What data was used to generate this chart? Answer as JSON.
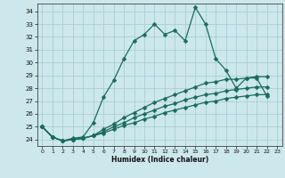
{
  "xlabel": "Humidex (Indice chaleur)",
  "bg_color": "#cce8ec",
  "grid_color": "#aacdd4",
  "line_color": "#1a6b5e",
  "xlim": [
    -0.5,
    23.5
  ],
  "ylim": [
    23.5,
    34.6
  ],
  "xticks": [
    0,
    1,
    2,
    3,
    4,
    5,
    6,
    7,
    8,
    9,
    10,
    11,
    12,
    13,
    14,
    15,
    16,
    17,
    18,
    19,
    20,
    21,
    22,
    23
  ],
  "yticks": [
    24,
    25,
    26,
    27,
    28,
    29,
    30,
    31,
    32,
    33,
    34
  ],
  "series": [
    [
      25.0,
      24.2,
      23.9,
      24.1,
      24.2,
      25.3,
      27.3,
      28.6,
      30.3,
      31.7,
      32.2,
      33.0,
      32.2,
      32.5,
      31.7,
      34.3,
      33.0,
      30.3,
      29.4,
      28.0,
      28.8,
      28.8,
      27.4
    ],
    [
      25.0,
      24.2,
      23.9,
      24.0,
      24.1,
      24.3,
      24.8,
      25.2,
      25.7,
      26.1,
      26.5,
      26.9,
      27.2,
      27.5,
      27.8,
      28.1,
      28.4,
      28.5,
      28.7,
      28.7,
      28.8,
      28.9,
      28.9
    ],
    [
      25.0,
      24.2,
      23.9,
      24.0,
      24.1,
      24.3,
      24.6,
      25.0,
      25.3,
      25.7,
      26.0,
      26.3,
      26.6,
      26.8,
      27.1,
      27.3,
      27.5,
      27.6,
      27.8,
      27.9,
      28.0,
      28.1,
      28.1
    ],
    [
      25.0,
      24.2,
      23.9,
      24.0,
      24.1,
      24.3,
      24.5,
      24.8,
      25.1,
      25.3,
      25.6,
      25.8,
      26.1,
      26.3,
      26.5,
      26.7,
      26.9,
      27.0,
      27.2,
      27.3,
      27.4,
      27.5,
      27.5
    ]
  ],
  "markersize": 2.5,
  "linewidth": 0.9
}
